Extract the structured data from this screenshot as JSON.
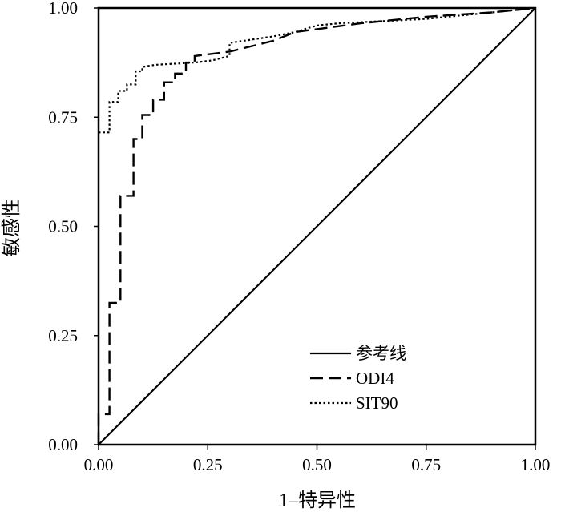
{
  "chart_data": {
    "type": "line",
    "xlabel": "1–特异性",
    "ylabel": "敏感性",
    "xlim": [
      0,
      1
    ],
    "ylim": [
      0,
      1
    ],
    "x_ticks": [
      "0.00",
      "0.25",
      "0.50",
      "0.75",
      "1.00"
    ],
    "y_ticks": [
      "0.00",
      "0.25",
      "0.50",
      "0.75",
      "1.00"
    ],
    "grid": false,
    "legend_position": "bottom-right",
    "series": [
      {
        "name": "参考线",
        "style": "solid",
        "points": [
          [
            0,
            0
          ],
          [
            1,
            1
          ]
        ]
      },
      {
        "name": "ODI4",
        "style": "dashed",
        "points": [
          [
            0,
            0
          ],
          [
            0,
            0.07
          ],
          [
            0.025,
            0.07
          ],
          [
            0.025,
            0.325
          ],
          [
            0.05,
            0.325
          ],
          [
            0.05,
            0.57
          ],
          [
            0.08,
            0.57
          ],
          [
            0.08,
            0.7
          ],
          [
            0.1,
            0.7
          ],
          [
            0.1,
            0.755
          ],
          [
            0.125,
            0.755
          ],
          [
            0.125,
            0.79
          ],
          [
            0.15,
            0.79
          ],
          [
            0.15,
            0.83
          ],
          [
            0.175,
            0.83
          ],
          [
            0.175,
            0.85
          ],
          [
            0.2,
            0.85
          ],
          [
            0.2,
            0.875
          ],
          [
            0.22,
            0.875
          ],
          [
            0.22,
            0.89
          ],
          [
            0.3,
            0.9
          ],
          [
            0.4,
            0.925
          ],
          [
            0.45,
            0.945
          ],
          [
            0.6,
            0.965
          ],
          [
            0.75,
            0.98
          ],
          [
            0.9,
            0.99
          ],
          [
            1.0,
            1.0
          ]
        ]
      },
      {
        "name": "SIT90",
        "style": "dotted",
        "points": [
          [
            0,
            0.715
          ],
          [
            0.025,
            0.715
          ],
          [
            0.025,
            0.785
          ],
          [
            0.045,
            0.785
          ],
          [
            0.045,
            0.81
          ],
          [
            0.065,
            0.81
          ],
          [
            0.065,
            0.825
          ],
          [
            0.085,
            0.825
          ],
          [
            0.085,
            0.855
          ],
          [
            0.1,
            0.855
          ],
          [
            0.1,
            0.865
          ],
          [
            0.13,
            0.87
          ],
          [
            0.22,
            0.875
          ],
          [
            0.26,
            0.88
          ],
          [
            0.3,
            0.89
          ],
          [
            0.3,
            0.92
          ],
          [
            0.4,
            0.935
          ],
          [
            0.45,
            0.945
          ],
          [
            0.5,
            0.96
          ],
          [
            0.55,
            0.965
          ],
          [
            0.75,
            0.975
          ],
          [
            0.9,
            0.99
          ],
          [
            1.0,
            1.0
          ]
        ]
      }
    ]
  }
}
